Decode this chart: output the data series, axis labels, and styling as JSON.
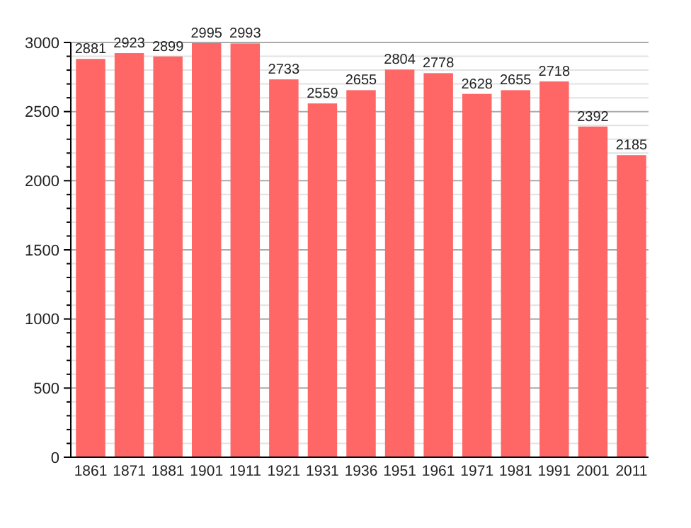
{
  "chart_data": {
    "type": "bar",
    "categories": [
      "1861",
      "1871",
      "1881",
      "1901",
      "1911",
      "1921",
      "1931",
      "1936",
      "1951",
      "1961",
      "1971",
      "1981",
      "1991",
      "2001",
      "2011"
    ],
    "values": [
      2881,
      2923,
      2899,
      2995,
      2993,
      2733,
      2559,
      2655,
      2804,
      2778,
      2628,
      2655,
      2718,
      2392,
      2185
    ],
    "color": "#ff6666",
    "ylim": [
      0,
      3000
    ],
    "yticks": [
      0,
      {
        "value": 100,
        "label": null
      },
      {
        "value": 200,
        "label": null
      },
      {
        "value": 300,
        "label": null
      },
      {
        "value": 400,
        "label": null
      },
      500,
      {
        "value": 600,
        "label": null
      },
      {
        "value": 700,
        "label": null
      },
      {
        "value": 800,
        "label": null
      },
      {
        "value": 900,
        "label": null
      },
      1000,
      {
        "value": 1100,
        "label": null
      },
      {
        "value": 1200,
        "label": null
      },
      {
        "value": 1300,
        "label": null
      },
      {
        "value": 1400,
        "label": null
      },
      1500,
      {
        "value": 1600,
        "label": null
      },
      {
        "value": 1700,
        "label": null
      },
      {
        "value": 1800,
        "label": null
      },
      {
        "value": 1900,
        "label": null
      },
      2000,
      {
        "value": 2100,
        "label": null
      },
      {
        "value": 2200,
        "label": null
      },
      {
        "value": 2300,
        "label": null
      },
      {
        "value": 2400,
        "label": null
      },
      2500,
      {
        "value": 2600,
        "label": null
      },
      {
        "value": 2700,
        "label": null
      },
      {
        "value": 2800,
        "label": null
      },
      {
        "value": 2900,
        "label": null
      },
      3000
    ],
    "grid": "y",
    "data_labels": true
  }
}
